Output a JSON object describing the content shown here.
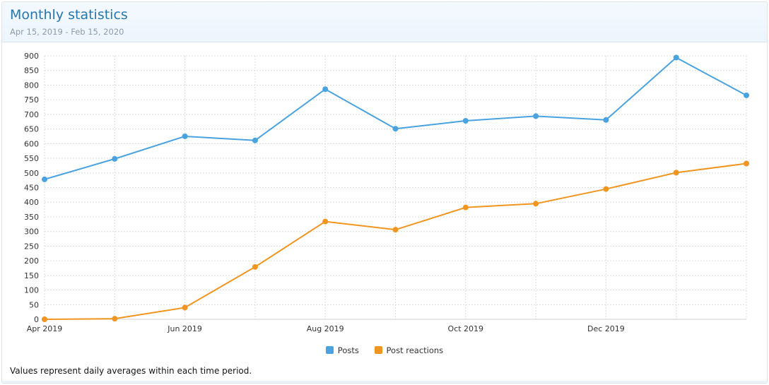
{
  "header": {
    "title": "Monthly statistics",
    "date_range": "Apr 15, 2019 - Feb 15, 2020"
  },
  "footnote": "Values represent daily averages within each time period.",
  "colors": {
    "posts": "#4aa3df",
    "post_reactions": "#f0951f",
    "grid": "#dcdcdc",
    "header_title": "#2577b1"
  },
  "chart_data": {
    "type": "line",
    "title": "",
    "xlabel": "",
    "ylabel": "",
    "ylim": [
      0,
      900
    ],
    "yticks": [
      0,
      50,
      100,
      150,
      200,
      250,
      300,
      350,
      400,
      450,
      500,
      550,
      600,
      650,
      700,
      750,
      800,
      850,
      900
    ],
    "x_tick_labels": [
      "Apr 2019",
      "Jun 2019",
      "Aug 2019",
      "Oct 2019",
      "Dec 2019"
    ],
    "x_tick_positions": [
      0,
      2,
      4,
      6,
      8
    ],
    "grid": true,
    "legend_position": "bottom-center",
    "series": [
      {
        "name": "Posts",
        "color": "#4aa3df",
        "values": [
          478,
          548,
          625,
          611,
          786,
          651,
          678,
          694,
          681,
          894,
          765
        ]
      },
      {
        "name": "Post reactions",
        "color": "#f0951f",
        "values": [
          0,
          2,
          40,
          179,
          334,
          306,
          382,
          395,
          445,
          501,
          532
        ]
      }
    ]
  }
}
